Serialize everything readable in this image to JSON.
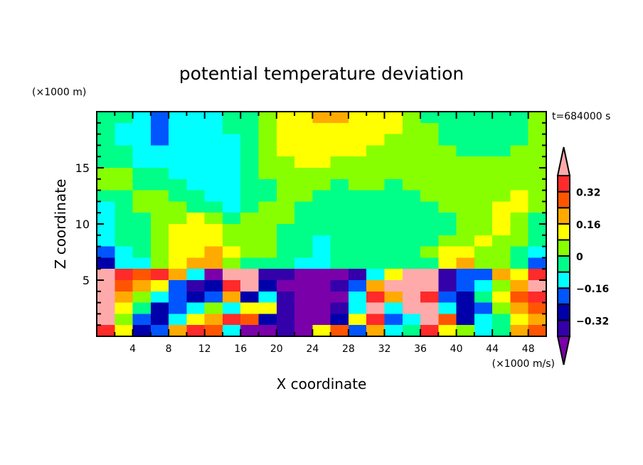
{
  "chart_data": {
    "type": "heatmap",
    "title": "potential temperature deviation",
    "xlabel": "X coordinate",
    "ylabel": "Z coordinate",
    "x_unit": "(×1000 m/s)",
    "y_unit": "(×1000 m)",
    "annotation": "t=684000 s",
    "xlim": [
      0,
      50
    ],
    "ylim": [
      0,
      20
    ],
    "x_ticks": [
      4,
      8,
      12,
      16,
      20,
      24,
      28,
      32,
      36,
      40,
      44,
      48
    ],
    "y_ticks": [
      5,
      10,
      15
    ],
    "grid": false,
    "legend": "right colorbar",
    "levels": [
      -0.4,
      -0.32,
      -0.24,
      -0.16,
      -0.08,
      0,
      0.08,
      0.16,
      0.24,
      0.32,
      0.4
    ],
    "colorbar_labels": [
      "0.32",
      "0.16",
      "0",
      "−0.16",
      "−0.32"
    ],
    "colorbar_label_values": [
      0.32,
      0.16,
      0,
      -0.16,
      -0.32
    ],
    "colors": [
      "#7a00aa",
      "#3300aa",
      "#0000aa",
      "#0055ff",
      "#00ffff",
      "#00ff88",
      "#88ff00",
      "#ffff00",
      "#ffaa00",
      "#ff5500",
      "#ff2a2a",
      "#ffaaaa"
    ],
    "x_centers": [
      1,
      3,
      5,
      7,
      9,
      11,
      13,
      15,
      17,
      19,
      21,
      23,
      25,
      27,
      29,
      31,
      33,
      35,
      37,
      39,
      41,
      43,
      45,
      47,
      49
    ],
    "z_centers": [
      19.5,
      18.5,
      17.5,
      16.5,
      15.5,
      14.5,
      13.5,
      12.5,
      11.5,
      10.5,
      9.5,
      8.5,
      7.5,
      6.5,
      5.5,
      4.5,
      3.5,
      2.5,
      1.5,
      0.5
    ],
    "values": [
      [
        -0.04,
        -0.04,
        -0.12,
        -0.2,
        -0.12,
        -0.12,
        -0.12,
        -0.04,
        -0.04,
        0.04,
        0.12,
        0.12,
        0.2,
        0.2,
        0.12,
        0.12,
        0.12,
        0.04,
        -0.04,
        -0.04,
        -0.04,
        -0.04,
        -0.04,
        -0.04,
        0.04
      ],
      [
        -0.04,
        -0.12,
        -0.12,
        -0.2,
        -0.12,
        -0.12,
        -0.12,
        -0.04,
        -0.04,
        0.04,
        0.12,
        0.12,
        0.12,
        0.12,
        0.12,
        0.12,
        0.12,
        0.04,
        0.04,
        -0.04,
        -0.04,
        -0.04,
        -0.04,
        -0.04,
        0.04
      ],
      [
        -0.04,
        -0.12,
        -0.12,
        -0.2,
        -0.12,
        -0.12,
        -0.12,
        -0.12,
        -0.04,
        0.04,
        0.12,
        0.12,
        0.12,
        0.12,
        0.12,
        0.12,
        0.04,
        0.04,
        0.04,
        -0.04,
        -0.04,
        -0.04,
        -0.04,
        -0.04,
        0.04
      ],
      [
        -0.04,
        -0.04,
        -0.12,
        -0.12,
        -0.12,
        -0.12,
        -0.12,
        -0.12,
        -0.04,
        0.04,
        0.12,
        0.12,
        0.12,
        0.12,
        0.12,
        0.04,
        0.04,
        0.04,
        0.04,
        0.04,
        -0.04,
        -0.04,
        -0.04,
        0.04,
        0.04
      ],
      [
        -0.04,
        -0.04,
        -0.12,
        -0.12,
        -0.12,
        -0.12,
        -0.12,
        -0.12,
        -0.04,
        0.04,
        0.04,
        0.12,
        0.12,
        0.04,
        0.04,
        0.04,
        0.04,
        0.04,
        0.04,
        0.04,
        0.04,
        0.04,
        0.04,
        0.04,
        0.04
      ],
      [
        0.04,
        0.04,
        -0.04,
        -0.04,
        -0.12,
        -0.12,
        -0.12,
        -0.12,
        -0.04,
        0.04,
        0.04,
        0.04,
        0.04,
        0.04,
        0.04,
        0.04,
        0.04,
        0.04,
        0.04,
        0.04,
        0.04,
        0.04,
        0.04,
        0.04,
        0.04
      ],
      [
        0.04,
        0.04,
        -0.04,
        -0.04,
        -0.04,
        -0.12,
        -0.12,
        -0.12,
        -0.04,
        -0.04,
        0.04,
        0.04,
        0.04,
        -0.04,
        0.04,
        0.04,
        -0.04,
        0.04,
        0.04,
        0.04,
        0.04,
        0.04,
        0.04,
        0.04,
        0.04
      ],
      [
        -0.04,
        -0.04,
        0.04,
        0.04,
        -0.04,
        -0.04,
        -0.12,
        -0.12,
        -0.04,
        -0.04,
        0.04,
        0.04,
        -0.04,
        -0.04,
        -0.04,
        -0.04,
        -0.04,
        -0.04,
        0.04,
        0.04,
        0.04,
        0.04,
        0.04,
        0.12,
        0.04
      ],
      [
        -0.12,
        -0.04,
        0.04,
        0.04,
        0.04,
        -0.04,
        -0.04,
        -0.12,
        -0.04,
        0.04,
        0.04,
        -0.04,
        -0.04,
        -0.04,
        -0.04,
        -0.04,
        -0.04,
        -0.04,
        -0.04,
        0.04,
        0.04,
        0.04,
        0.12,
        0.12,
        0.04
      ],
      [
        -0.12,
        -0.04,
        -0.04,
        0.04,
        0.04,
        0.12,
        0.04,
        -0.04,
        0.04,
        0.04,
        0.04,
        -0.04,
        -0.04,
        -0.04,
        -0.04,
        -0.04,
        -0.04,
        -0.04,
        -0.04,
        -0.04,
        0.04,
        0.04,
        0.12,
        0.04,
        -0.04
      ],
      [
        -0.12,
        -0.04,
        -0.04,
        0.04,
        0.12,
        0.12,
        0.12,
        0.04,
        0.04,
        0.04,
        -0.04,
        -0.04,
        -0.04,
        -0.04,
        -0.04,
        -0.04,
        -0.04,
        -0.04,
        -0.04,
        -0.04,
        0.04,
        0.04,
        0.12,
        0.04,
        -0.04
      ],
      [
        -0.12,
        -0.04,
        -0.04,
        0.04,
        0.12,
        0.12,
        0.12,
        0.04,
        0.04,
        0.04,
        -0.04,
        -0.04,
        -0.12,
        -0.04,
        -0.04,
        -0.04,
        -0.04,
        -0.04,
        -0.04,
        0.04,
        0.04,
        0.12,
        0.04,
        0.04,
        -0.04
      ],
      [
        -0.2,
        -0.12,
        -0.04,
        0.04,
        0.12,
        0.12,
        0.2,
        0.12,
        0.04,
        0.04,
        -0.04,
        -0.04,
        -0.12,
        -0.04,
        -0.04,
        -0.04,
        -0.04,
        -0.04,
        0.04,
        0.12,
        0.12,
        0.04,
        0.04,
        -0.04,
        -0.12
      ],
      [
        -0.28,
        -0.12,
        -0.12,
        0.04,
        0.12,
        0.2,
        0.2,
        0.04,
        -0.04,
        -0.04,
        -0.04,
        -0.12,
        -0.12,
        -0.04,
        -0.04,
        -0.04,
        -0.04,
        -0.04,
        -0.04,
        0.12,
        0.2,
        0.04,
        0.04,
        -0.04,
        -0.2
      ],
      [
        0.44,
        0.36,
        0.28,
        0.36,
        0.2,
        -0.12,
        -0.44,
        0.44,
        0.44,
        -0.36,
        -0.36,
        -0.44,
        -0.44,
        -0.44,
        -0.36,
        -0.12,
        0.12,
        0.44,
        0.44,
        -0.36,
        -0.2,
        -0.2,
        0.2,
        0.12,
        0.36
      ],
      [
        0.44,
        0.28,
        0.2,
        0.12,
        -0.2,
        -0.36,
        -0.28,
        0.36,
        0.44,
        -0.28,
        -0.44,
        -0.44,
        -0.44,
        -0.36,
        -0.2,
        0.2,
        0.44,
        0.44,
        0.44,
        -0.36,
        -0.2,
        -0.12,
        0.04,
        0.2,
        0.44
      ],
      [
        0.44,
        0.2,
        0.04,
        -0.12,
        -0.2,
        -0.28,
        -0.2,
        0.2,
        -0.28,
        -0.12,
        -0.36,
        -0.44,
        -0.44,
        -0.44,
        -0.12,
        0.36,
        0.2,
        0.44,
        0.36,
        -0.2,
        -0.28,
        -0.04,
        0.12,
        0.28,
        0.36
      ],
      [
        0.44,
        0.12,
        -0.04,
        -0.28,
        -0.2,
        -0.12,
        0.04,
        -0.12,
        0.12,
        0.12,
        -0.36,
        -0.44,
        -0.44,
        -0.36,
        -0.12,
        0.44,
        -0.12,
        0.44,
        0.44,
        -0.12,
        -0.28,
        -0.2,
        0.04,
        0.2,
        0.28
      ],
      [
        0.44,
        0.04,
        -0.2,
        -0.28,
        -0.12,
        0.12,
        0.2,
        0.36,
        0.28,
        -0.28,
        -0.36,
        -0.44,
        -0.44,
        -0.28,
        0.12,
        0.36,
        -0.2,
        -0.12,
        0.44,
        0.28,
        -0.28,
        -0.12,
        -0.04,
        0.12,
        0.2
      ],
      [
        0.36,
        0.12,
        -0.28,
        -0.2,
        0.2,
        0.36,
        0.28,
        -0.12,
        -0.44,
        -0.44,
        -0.36,
        -0.44,
        0.12,
        0.28,
        -0.2,
        0.2,
        -0.12,
        -0.04,
        0.36,
        0.12,
        0.04,
        -0.12,
        -0.04,
        0.2,
        0.28
      ]
    ]
  }
}
